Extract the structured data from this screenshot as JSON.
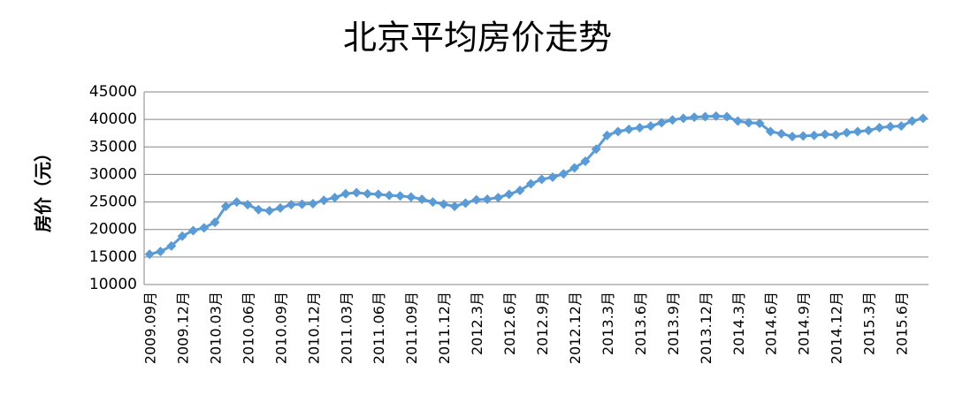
{
  "chart_data": {
    "type": "line",
    "title": "北京平均房价走势",
    "y_label": "房价（元）",
    "categories": [
      "2009.09月",
      null,
      null,
      "2009.12月",
      null,
      null,
      "2010.03月",
      null,
      null,
      "2010.06月",
      null,
      null,
      "2010.09月",
      null,
      null,
      "2010.12月",
      null,
      null,
      "2011.03月",
      null,
      null,
      "2011.06月",
      null,
      null,
      "2011.09月",
      null,
      null,
      "2011.12月",
      null,
      null,
      "2012.3月",
      null,
      null,
      "2012.6月",
      null,
      null,
      "2012.9月",
      null,
      null,
      "2012.12月",
      null,
      null,
      "2013.3月",
      null,
      null,
      "2013.6月",
      null,
      null,
      "2013.9月",
      null,
      null,
      "2013.12月",
      null,
      null,
      "2014.3月",
      null,
      null,
      "2014.6月",
      null,
      null,
      "2014.9月",
      null,
      null,
      "2014.12月",
      null,
      null,
      "2015.3月",
      null,
      null,
      "2015.6月",
      null,
      null
    ],
    "values": [
      15500,
      16000,
      17000,
      18800,
      19800,
      20300,
      21300,
      24200,
      25000,
      24500,
      23600,
      23400,
      23900,
      24500,
      24600,
      24700,
      25300,
      25800,
      26500,
      26700,
      26500,
      26400,
      26200,
      26100,
      25900,
      25500,
      25000,
      24600,
      24200,
      24800,
      25400,
      25500,
      25800,
      26400,
      27100,
      28300,
      29100,
      29500,
      30100,
      31200,
      32400,
      34600,
      37100,
      37800,
      38200,
      38500,
      38800,
      39400,
      39900,
      40200,
      40400,
      40500,
      40600,
      40500,
      39700,
      39400,
      39300,
      37800,
      37400,
      36900,
      37000,
      37100,
      37300,
      37200,
      37600,
      37800,
      38000,
      38500,
      38700,
      38800,
      39700,
      40200
    ],
    "color": "#5b9bd5",
    "marker": "diamond",
    "ylim": [
      10000,
      45000
    ],
    "yticks": [
      10000,
      15000,
      20000,
      25000,
      30000,
      35000,
      40000,
      45000
    ],
    "grid": true
  }
}
